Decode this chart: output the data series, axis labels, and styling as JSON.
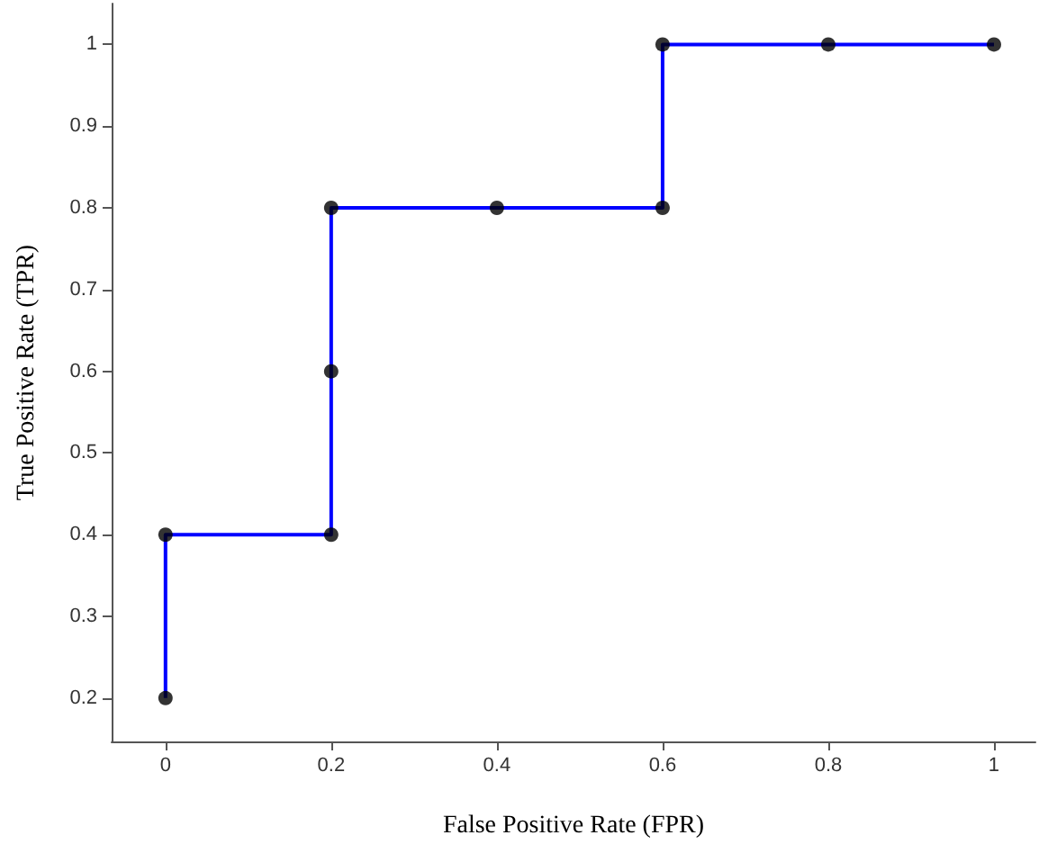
{
  "chart_data": {
    "type": "line",
    "xlabel": "False Positive Rate (FPR)",
    "ylabel": "True Positive Rate (TPR)",
    "xlim": [
      -0.065,
      1.05
    ],
    "ylim": [
      0.147,
      1.05
    ],
    "xticks": [
      0,
      0.2,
      0.4,
      0.6,
      0.8,
      1
    ],
    "yticks": [
      0.2,
      0.3,
      0.4,
      0.5,
      0.6,
      0.7,
      0.8,
      0.9,
      1
    ],
    "grid": false,
    "series": [
      {
        "type": "line",
        "color": "#0000ff",
        "marker": "none",
        "line_style": "solid",
        "x": [
          0,
          0,
          0.2,
          0.2,
          0.2,
          0.4,
          0.6,
          0.6,
          0.8,
          1
        ],
        "values": [
          0.2,
          0.4,
          0.4,
          0.6,
          0.8,
          0.8,
          0.8,
          1,
          1,
          1
        ]
      },
      {
        "type": "scatter",
        "color": "#000000",
        "marker": "circle",
        "x": [
          0,
          0,
          0.2,
          0.2,
          0.2,
          0.4,
          0.6,
          0.6,
          0.8,
          1
        ],
        "values": [
          0.2,
          0.4,
          0.4,
          0.6,
          0.8,
          0.8,
          0.8,
          1,
          1,
          1
        ]
      }
    ]
  }
}
